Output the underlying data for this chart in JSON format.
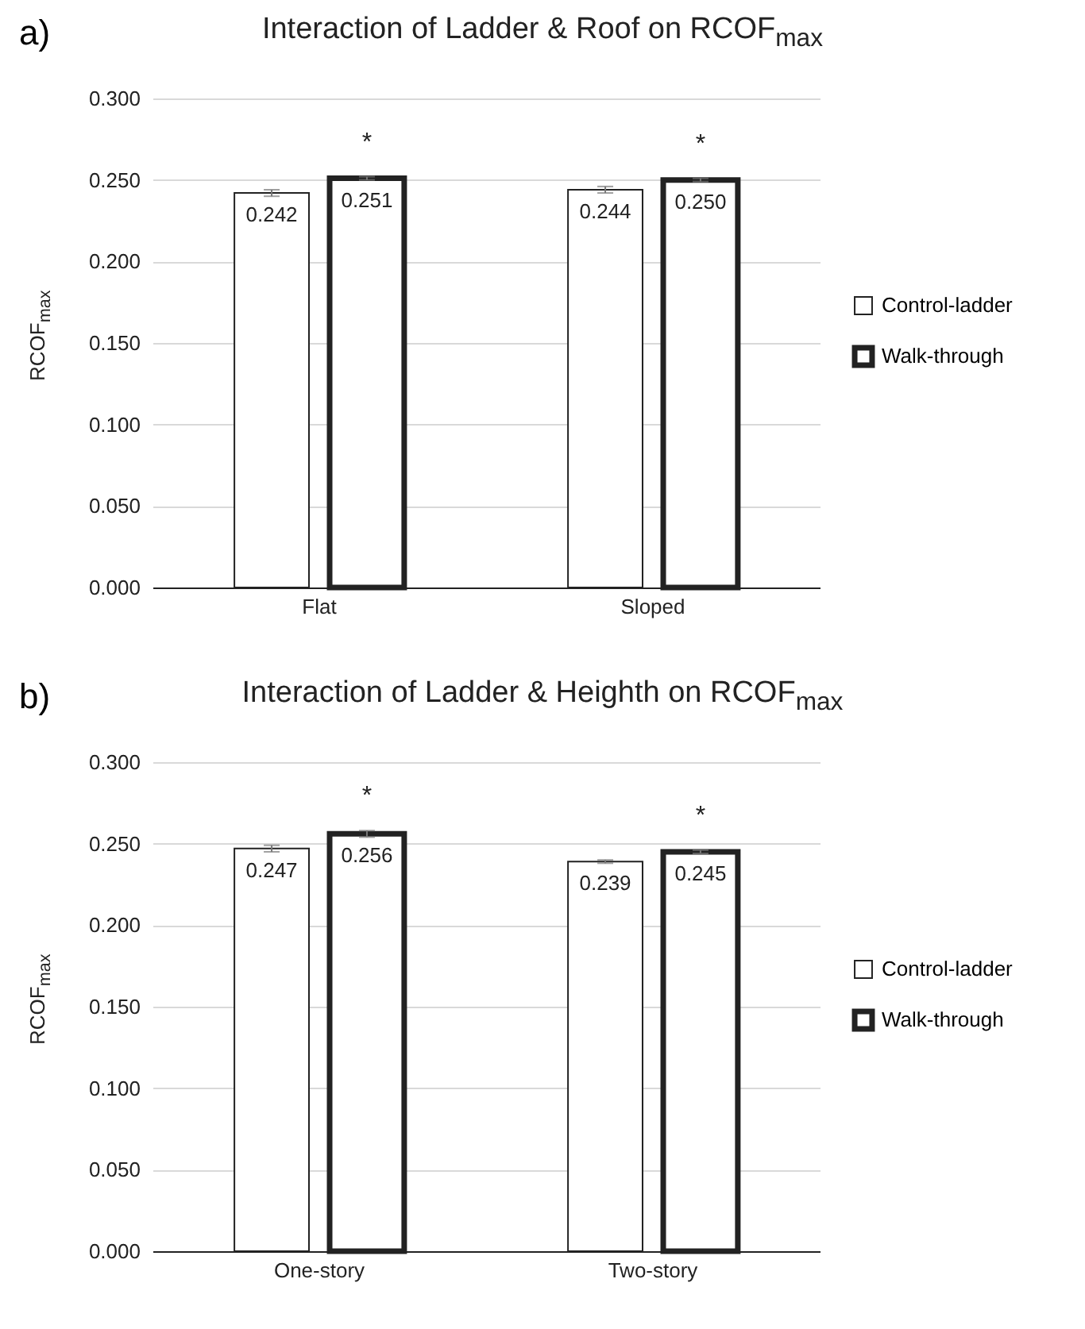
{
  "chart_data": [
    {
      "type": "bar",
      "title": "Interaction of Ladder & Roof on RCOF$_{max}$",
      "ylabel": "RCOF$_{max}$",
      "annotations": [
        "a)",
        "*",
        "*"
      ],
      "categories": [
        "Flat",
        "Sloped"
      ],
      "series": [
        {
          "name": "Control-ladder",
          "color": "#ffffff",
          "values": [
            0.242,
            0.244
          ],
          "errors": [
            0.002,
            0.002
          ],
          "value_labels": [
            "0.242",
            "0.244"
          ]
        },
        {
          "name": "Walk-through",
          "color": "#ffffff",
          "values": [
            0.251,
            0.25
          ],
          "errors": [
            0.001,
            0.001
          ],
          "value_labels": [
            "0.251",
            "0.250"
          ]
        }
      ],
      "ylim": [
        0,
        0.3
      ],
      "yticks": [
        {
          "value": 0,
          "label": "0.000"
        },
        {
          "value": 0.05,
          "label": "0.050"
        },
        {
          "value": 0.1,
          "label": "0.100"
        },
        {
          "value": 0.15,
          "label": "0.150"
        },
        {
          "value": 0.2,
          "label": "0.200"
        },
        {
          "value": 0.25,
          "label": "0.250"
        },
        {
          "value": 0.3,
          "label": "0.300"
        }
      ],
      "grid": "y",
      "legend": "right"
    },
    {
      "type": "bar",
      "title": "Interaction of Ladder & Heighth on RCOF$_{max}$",
      "ylabel": "RCOF$_{max}$",
      "annotations": [
        "b)",
        "*",
        "*"
      ],
      "categories": [
        "One-story",
        "Two-story"
      ],
      "series": [
        {
          "name": "Control-ladder",
          "color": "#ffffff",
          "values": [
            0.247,
            0.239
          ],
          "errors": [
            0.002,
            0.001
          ],
          "value_labels": [
            "0.247",
            "0.239"
          ]
        },
        {
          "name": "Walk-through",
          "color": "#ffffff",
          "values": [
            0.256,
            0.245
          ],
          "errors": [
            0.002,
            0.001
          ],
          "value_labels": [
            "0.256",
            "0.245"
          ]
        }
      ],
      "ylim": [
        0,
        0.3
      ],
      "yticks": [
        {
          "value": 0,
          "label": "0.000"
        },
        {
          "value": 0.05,
          "label": "0.050"
        },
        {
          "value": 0.1,
          "label": "0.100"
        },
        {
          "value": 0.15,
          "label": "0.150"
        },
        {
          "value": 0.2,
          "label": "0.200"
        },
        {
          "value": 0.25,
          "label": "0.250"
        },
        {
          "value": 0.3,
          "label": "0.300"
        }
      ],
      "grid": "y",
      "legend": "right"
    }
  ]
}
